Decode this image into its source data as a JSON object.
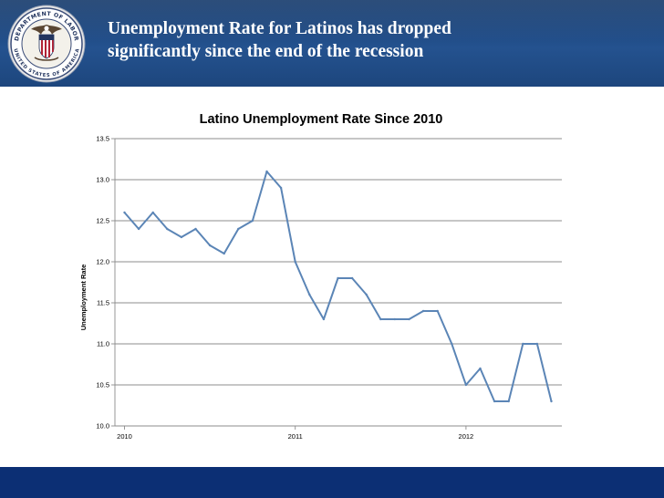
{
  "slide": {
    "title_line1": "Unemployment Rate for Latinos has dropped",
    "title_line2": "significantly since the end of the recession",
    "seal_text_top": "DEPARTMENT OF LABOR",
    "seal_text_bottom": "UNITED STATES OF AMERICA"
  },
  "colors": {
    "header": "#1f4a85",
    "footer": "#0c2f74",
    "series": "#5b85b6",
    "grid": "#8c8c8c"
  },
  "chart_data": {
    "type": "line",
    "title": "Latino Unemployment Rate Since 2010",
    "xlabel": "",
    "ylabel": "Unemployment Rate",
    "ylim": [
      10.0,
      13.5
    ],
    "yticks": [
      "10.0",
      "10.5",
      "11.0",
      "11.5",
      "12.0",
      "12.5",
      "13.0",
      "13.5"
    ],
    "xticks": [
      {
        "label": "2010",
        "month_index": 0
      },
      {
        "label": "2011",
        "month_index": 12
      },
      {
        "label": "2012",
        "month_index": 24
      }
    ],
    "grid": true,
    "legend": "none",
    "series": [
      {
        "values": [
          12.6,
          12.4,
          12.6,
          12.4,
          12.3,
          12.4,
          12.2,
          12.1,
          12.4,
          12.5,
          13.1,
          12.9,
          12.0,
          11.6,
          11.3,
          11.8,
          11.8,
          11.6,
          11.3,
          11.3,
          11.3,
          11.4,
          11.4,
          11.0,
          10.5,
          10.7,
          10.3,
          10.3,
          11.0,
          11.0,
          10.3
        ]
      }
    ]
  }
}
